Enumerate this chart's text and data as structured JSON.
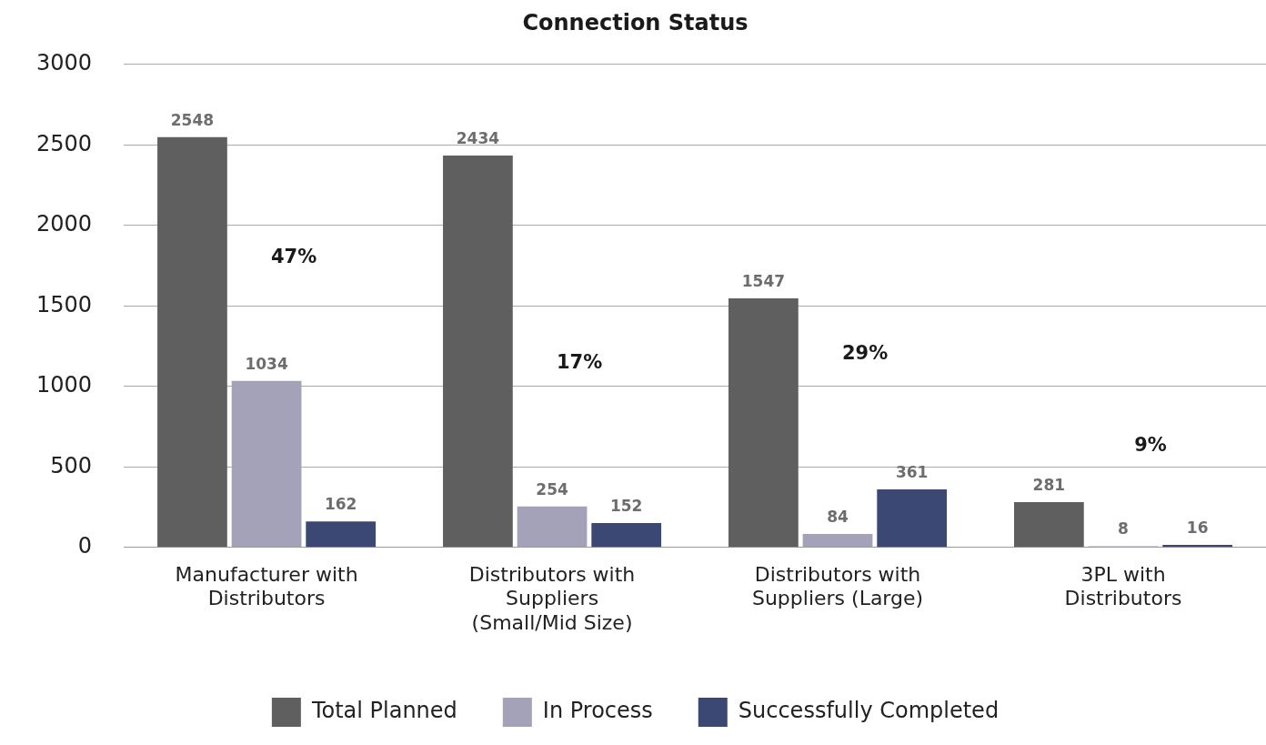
{
  "chart_data": {
    "type": "bar",
    "title": "Connection Status",
    "categories": [
      "Manufacturer with Distributors",
      "Distributors with Suppliers (Small/Mid Size)",
      "Distributors with Suppliers (Large)",
      "3PL with Distributors"
    ],
    "series": [
      {
        "name": "Total Planned",
        "color": "#5f5f5f",
        "values": [
          2548,
          2434,
          1547,
          281
        ]
      },
      {
        "name": "In Process",
        "color": "#a3a2b9",
        "values": [
          1034,
          254,
          84,
          8
        ]
      },
      {
        "name": "Successfully Completed",
        "color": "#3b4873",
        "values": [
          162,
          152,
          361,
          16
        ]
      }
    ],
    "ylim": [
      0,
      3000
    ],
    "yticks": [
      0,
      500,
      1000,
      1500,
      2000,
      2500,
      3000
    ],
    "grid": "y",
    "legend": "bottom",
    "data_labels": true,
    "annotations": [
      "47%",
      "17%",
      "29%",
      "9%"
    ]
  }
}
